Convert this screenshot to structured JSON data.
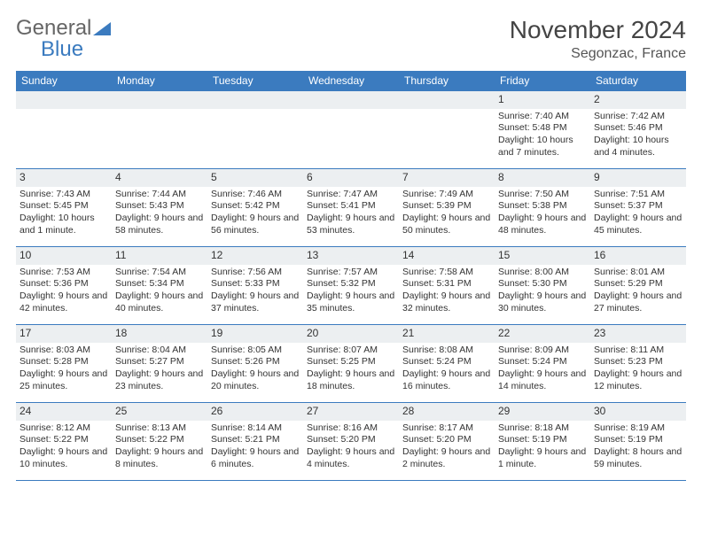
{
  "logo": {
    "word1": "General",
    "word2": "Blue"
  },
  "title": "November 2024",
  "location": "Segonzac, France",
  "colors": {
    "header_bg": "#3b7bbf",
    "header_text": "#ffffff",
    "day_strip_bg": "#eceff1",
    "border": "#3b7bbf",
    "body_text": "#333333",
    "page_bg": "#ffffff"
  },
  "day_headers": [
    "Sunday",
    "Monday",
    "Tuesday",
    "Wednesday",
    "Thursday",
    "Friday",
    "Saturday"
  ],
  "weeks": [
    [
      {
        "num": "",
        "lines": []
      },
      {
        "num": "",
        "lines": []
      },
      {
        "num": "",
        "lines": []
      },
      {
        "num": "",
        "lines": []
      },
      {
        "num": "",
        "lines": []
      },
      {
        "num": "1",
        "lines": [
          "Sunrise: 7:40 AM",
          "Sunset: 5:48 PM",
          "Daylight: 10 hours and 7 minutes."
        ]
      },
      {
        "num": "2",
        "lines": [
          "Sunrise: 7:42 AM",
          "Sunset: 5:46 PM",
          "Daylight: 10 hours and 4 minutes."
        ]
      }
    ],
    [
      {
        "num": "3",
        "lines": [
          "Sunrise: 7:43 AM",
          "Sunset: 5:45 PM",
          "Daylight: 10 hours and 1 minute."
        ]
      },
      {
        "num": "4",
        "lines": [
          "Sunrise: 7:44 AM",
          "Sunset: 5:43 PM",
          "Daylight: 9 hours and 58 minutes."
        ]
      },
      {
        "num": "5",
        "lines": [
          "Sunrise: 7:46 AM",
          "Sunset: 5:42 PM",
          "Daylight: 9 hours and 56 minutes."
        ]
      },
      {
        "num": "6",
        "lines": [
          "Sunrise: 7:47 AM",
          "Sunset: 5:41 PM",
          "Daylight: 9 hours and 53 minutes."
        ]
      },
      {
        "num": "7",
        "lines": [
          "Sunrise: 7:49 AM",
          "Sunset: 5:39 PM",
          "Daylight: 9 hours and 50 minutes."
        ]
      },
      {
        "num": "8",
        "lines": [
          "Sunrise: 7:50 AM",
          "Sunset: 5:38 PM",
          "Daylight: 9 hours and 48 minutes."
        ]
      },
      {
        "num": "9",
        "lines": [
          "Sunrise: 7:51 AM",
          "Sunset: 5:37 PM",
          "Daylight: 9 hours and 45 minutes."
        ]
      }
    ],
    [
      {
        "num": "10",
        "lines": [
          "Sunrise: 7:53 AM",
          "Sunset: 5:36 PM",
          "Daylight: 9 hours and 42 minutes."
        ]
      },
      {
        "num": "11",
        "lines": [
          "Sunrise: 7:54 AM",
          "Sunset: 5:34 PM",
          "Daylight: 9 hours and 40 minutes."
        ]
      },
      {
        "num": "12",
        "lines": [
          "Sunrise: 7:56 AM",
          "Sunset: 5:33 PM",
          "Daylight: 9 hours and 37 minutes."
        ]
      },
      {
        "num": "13",
        "lines": [
          "Sunrise: 7:57 AM",
          "Sunset: 5:32 PM",
          "Daylight: 9 hours and 35 minutes."
        ]
      },
      {
        "num": "14",
        "lines": [
          "Sunrise: 7:58 AM",
          "Sunset: 5:31 PM",
          "Daylight: 9 hours and 32 minutes."
        ]
      },
      {
        "num": "15",
        "lines": [
          "Sunrise: 8:00 AM",
          "Sunset: 5:30 PM",
          "Daylight: 9 hours and 30 minutes."
        ]
      },
      {
        "num": "16",
        "lines": [
          "Sunrise: 8:01 AM",
          "Sunset: 5:29 PM",
          "Daylight: 9 hours and 27 minutes."
        ]
      }
    ],
    [
      {
        "num": "17",
        "lines": [
          "Sunrise: 8:03 AM",
          "Sunset: 5:28 PM",
          "Daylight: 9 hours and 25 minutes."
        ]
      },
      {
        "num": "18",
        "lines": [
          "Sunrise: 8:04 AM",
          "Sunset: 5:27 PM",
          "Daylight: 9 hours and 23 minutes."
        ]
      },
      {
        "num": "19",
        "lines": [
          "Sunrise: 8:05 AM",
          "Sunset: 5:26 PM",
          "Daylight: 9 hours and 20 minutes."
        ]
      },
      {
        "num": "20",
        "lines": [
          "Sunrise: 8:07 AM",
          "Sunset: 5:25 PM",
          "Daylight: 9 hours and 18 minutes."
        ]
      },
      {
        "num": "21",
        "lines": [
          "Sunrise: 8:08 AM",
          "Sunset: 5:24 PM",
          "Daylight: 9 hours and 16 minutes."
        ]
      },
      {
        "num": "22",
        "lines": [
          "Sunrise: 8:09 AM",
          "Sunset: 5:24 PM",
          "Daylight: 9 hours and 14 minutes."
        ]
      },
      {
        "num": "23",
        "lines": [
          "Sunrise: 8:11 AM",
          "Sunset: 5:23 PM",
          "Daylight: 9 hours and 12 minutes."
        ]
      }
    ],
    [
      {
        "num": "24",
        "lines": [
          "Sunrise: 8:12 AM",
          "Sunset: 5:22 PM",
          "Daylight: 9 hours and 10 minutes."
        ]
      },
      {
        "num": "25",
        "lines": [
          "Sunrise: 8:13 AM",
          "Sunset: 5:22 PM",
          "Daylight: 9 hours and 8 minutes."
        ]
      },
      {
        "num": "26",
        "lines": [
          "Sunrise: 8:14 AM",
          "Sunset: 5:21 PM",
          "Daylight: 9 hours and 6 minutes."
        ]
      },
      {
        "num": "27",
        "lines": [
          "Sunrise: 8:16 AM",
          "Sunset: 5:20 PM",
          "Daylight: 9 hours and 4 minutes."
        ]
      },
      {
        "num": "28",
        "lines": [
          "Sunrise: 8:17 AM",
          "Sunset: 5:20 PM",
          "Daylight: 9 hours and 2 minutes."
        ]
      },
      {
        "num": "29",
        "lines": [
          "Sunrise: 8:18 AM",
          "Sunset: 5:19 PM",
          "Daylight: 9 hours and 1 minute."
        ]
      },
      {
        "num": "30",
        "lines": [
          "Sunrise: 8:19 AM",
          "Sunset: 5:19 PM",
          "Daylight: 8 hours and 59 minutes."
        ]
      }
    ]
  ]
}
